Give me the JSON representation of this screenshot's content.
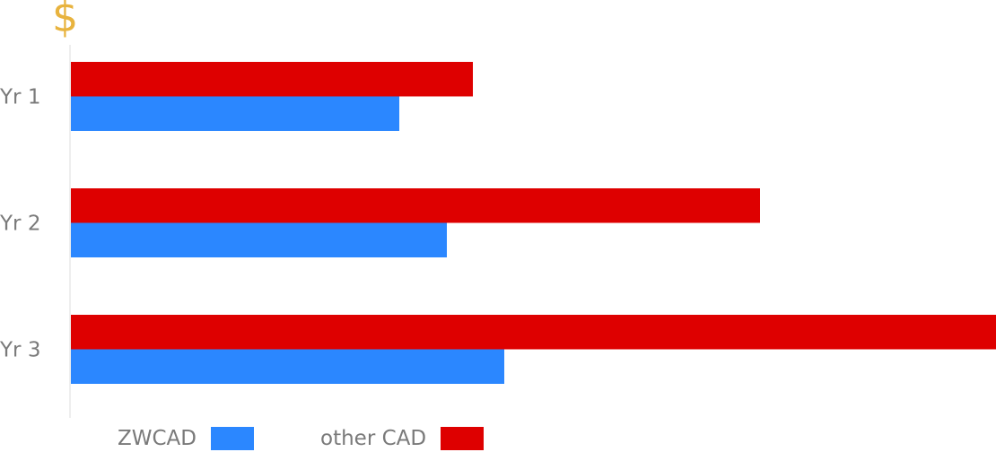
{
  "currency_symbol": "$",
  "colors": {
    "zwcad": "#2b87ff",
    "other_cad": "#de0000",
    "currency": "#e8b33e",
    "axis": "#dddddd",
    "label": "#7a7a7a"
  },
  "legend": {
    "zwcad_label": "ZWCAD",
    "other_label": "other CAD"
  },
  "chart_data": {
    "type": "bar",
    "orientation": "horizontal",
    "categories": [
      "Yr 1",
      "Yr 2",
      "Yr 3"
    ],
    "series": [
      {
        "name": "other CAD",
        "values": [
          448,
          768,
          1031
        ]
      },
      {
        "name": "ZWCAD",
        "values": [
          366,
          419,
          483
        ]
      }
    ],
    "xlim": [
      0,
      1031
    ],
    "ylabel": "$",
    "xlabel": "",
    "grid": false,
    "legend_position": "bottom-left",
    "tick_labels_shown": false
  }
}
